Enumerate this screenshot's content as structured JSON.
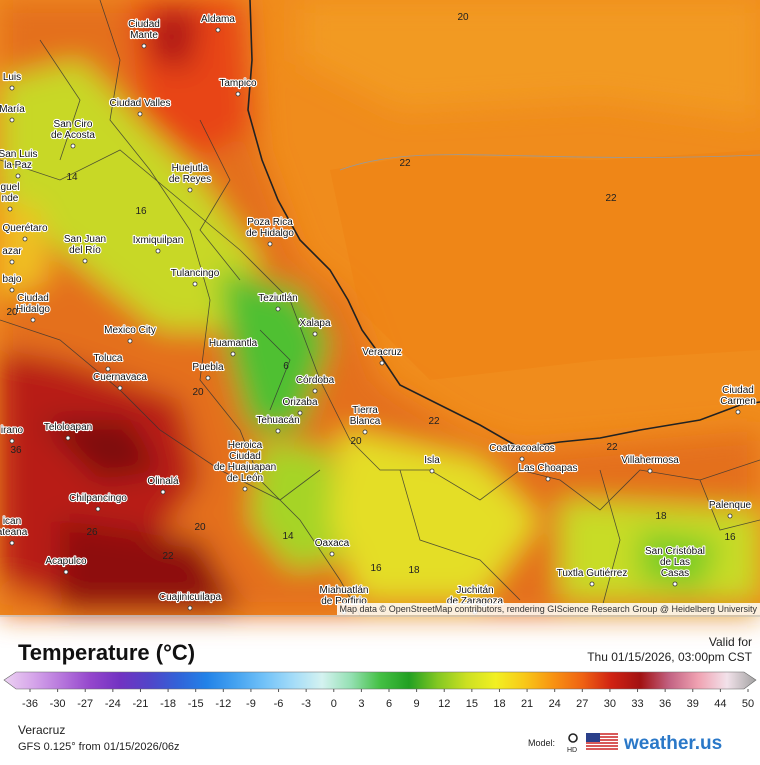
{
  "map": {
    "places": [
      [
        "Aldama"
      ],
      [
        "Ciudad",
        "Mante"
      ],
      [
        "Tampico"
      ],
      [
        "Ciudad Valles"
      ],
      [
        "San Ciro",
        "de Acosta"
      ],
      [
        "Huejutla",
        "de Reyes"
      ],
      [
        "Poza Rica",
        "de Hidalgo"
      ],
      [
        "Querétaro"
      ],
      [
        "San Juan",
        "del Río"
      ],
      [
        "Ixmiquilpan"
      ],
      [
        "Tulancingo"
      ],
      [
        "Teziutlán"
      ],
      [
        "Ciudad",
        "Hidalgo"
      ],
      [
        "Xalapa"
      ],
      [
        "Mexico City"
      ],
      [
        "Huamantla"
      ],
      [
        "Veracruz"
      ],
      [
        "Toluca"
      ],
      [
        "Puebla"
      ],
      [
        "Cuernavaca"
      ],
      [
        "Córdoba"
      ],
      [
        "Orizaba"
      ],
      [
        "Tierra",
        "Blanca"
      ],
      [
        "Tehuacán"
      ],
      [
        "Teloloapan"
      ],
      [
        "Heroica",
        "Ciudad",
        "de Huajuapan",
        "de León"
      ],
      [
        "Coatzacoalcos"
      ],
      [
        "Las Choapas"
      ],
      [
        "Villahermosa"
      ],
      [
        "Isla"
      ],
      [
        "Olinalá"
      ],
      [
        "Chilpancingo"
      ],
      [
        "Palenque"
      ],
      [
        "Oaxaca"
      ],
      [
        "San Cristóbal",
        "de Las",
        "Casas"
      ],
      [
        "Acapulco"
      ],
      [
        "Tuxtla Gutiérrez"
      ],
      [
        "Cuajinicuilapa"
      ],
      [
        "Miahuatlán",
        "de Porfirio"
      ],
      [
        "Juchitán",
        "de Zaragoza"
      ],
      [
        "Ciudad",
        "Carmen"
      ],
      [
        "Luis"
      ],
      [
        "María"
      ],
      [
        "San Luis",
        "la Paz"
      ],
      [
        "guel",
        "nde"
      ],
      [
        "azar"
      ],
      [
        "bajo"
      ],
      [
        "irano"
      ],
      [
        "ican",
        "ateana"
      ]
    ],
    "contours": [
      20,
      22,
      22,
      14,
      16,
      20,
      20,
      20,
      22,
      22,
      18,
      16,
      14,
      16,
      18,
      20,
      22,
      26,
      36,
      6
    ],
    "attribution": "Map data © OpenStreetMap contributors, rendering GIScience Research Group @ Heidelberg University"
  },
  "legend": {
    "title": "Temperature (°C)",
    "ticks": [
      -36,
      -30,
      -27,
      -24,
      -21,
      -18,
      -15,
      -12,
      -9,
      -6,
      -3,
      0,
      3,
      6,
      9,
      12,
      15,
      18,
      21,
      24,
      27,
      30,
      33,
      36,
      39,
      44,
      50
    ],
    "colors": [
      "#ecd2f2",
      "#d6a6ea",
      "#b676dc",
      "#9446cc",
      "#7232c2",
      "#5244c8",
      "#3262d8",
      "#2282e8",
      "#44a2f0",
      "#72c2f8",
      "#a4dcf8",
      "#d4f2f0",
      "#94e0b2",
      "#44c044",
      "#22a022",
      "#84c822",
      "#cce022",
      "#f2f022",
      "#f8c818",
      "#f89212",
      "#ef6212",
      "#d02212",
      "#a21212",
      "#c26282",
      "#f0a2b2",
      "#f2e2ea",
      "#a2a2a2"
    ]
  },
  "valid": {
    "label": "Valid for",
    "time": "Thu 01/15/2026, 03:00pm CST"
  },
  "region": "Veracruz",
  "run": "GFS 0.125° from  01/15/2026/06z",
  "model": {
    "label": "Model:",
    "hd": "HD",
    "brand": "weather.us"
  }
}
